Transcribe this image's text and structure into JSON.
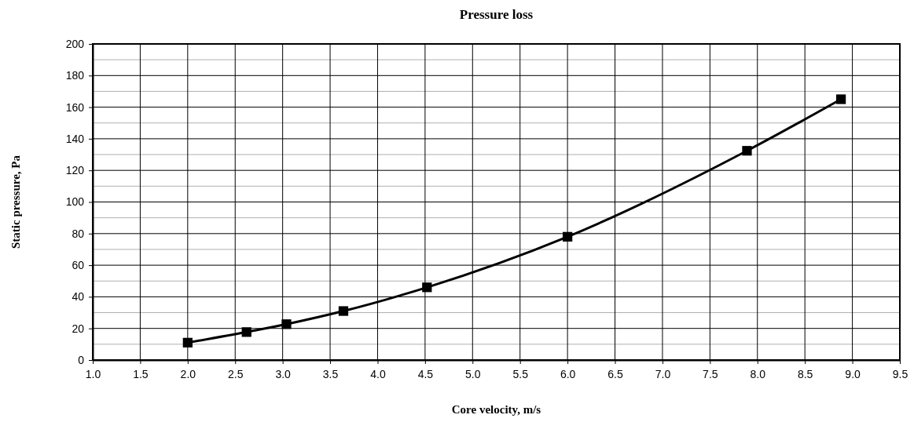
{
  "chart_data": {
    "type": "line",
    "title": "Pressure loss",
    "xlabel": "Core velocity, m/s",
    "ylabel": "Static pressure, Pa",
    "x": [
      2.0,
      2.62,
      3.04,
      3.64,
      4.52,
      6.0,
      7.89,
      8.88
    ],
    "series": [
      {
        "color": "#000000",
        "values": [
          11,
          17.7,
          22.7,
          31,
          46,
          78,
          132.4,
          165
        ]
      }
    ],
    "xlim": [
      1.0,
      9.5
    ],
    "xticks": [
      {
        "value": 1,
        "label": "1.0"
      },
      1.5,
      {
        "value": 2,
        "label": "2.0"
      },
      2.5,
      {
        "value": 3,
        "label": "3.0"
      },
      3.5,
      {
        "value": 4,
        "label": "4.0"
      },
      4.5,
      {
        "value": 5,
        "label": "5.0"
      },
      5.5,
      {
        "value": 6,
        "label": "6.0"
      },
      6.5,
      {
        "value": 7,
        "label": "7.0"
      },
      7.5,
      {
        "value": 8,
        "label": "8.0"
      },
      8.5,
      {
        "value": 9,
        "label": "9.0"
      },
      9.5
    ],
    "ylim": [
      0,
      200
    ],
    "yticks": [
      0,
      {
        "value": 10,
        "label": null
      },
      20,
      {
        "value": 30,
        "label": null
      },
      40,
      {
        "value": 50,
        "label": null
      },
      60,
      {
        "value": 70,
        "label": null
      },
      80,
      {
        "value": 90,
        "label": null
      },
      100,
      {
        "value": 110,
        "label": null
      },
      120,
      {
        "value": 130,
        "label": null
      },
      140,
      {
        "value": 150,
        "label": null
      },
      160,
      {
        "value": 170,
        "label": null
      },
      180,
      {
        "value": 190,
        "label": null
      },
      200
    ],
    "grid": true,
    "marker": "square",
    "line_style": "solid"
  }
}
